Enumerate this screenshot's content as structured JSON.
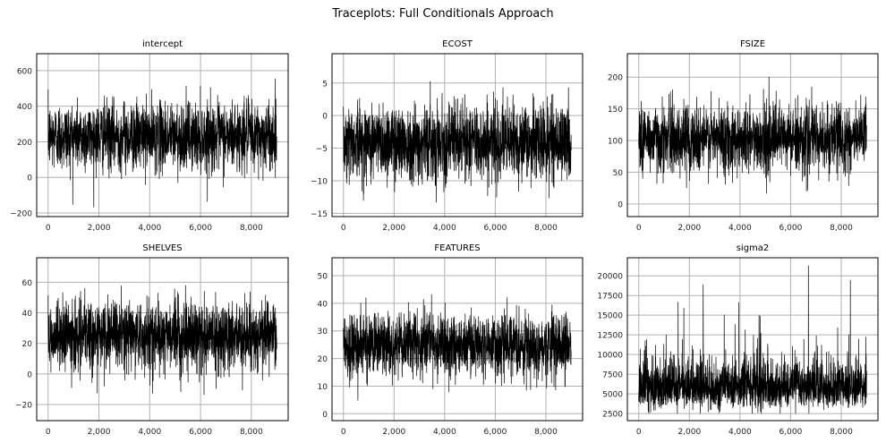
{
  "figure": {
    "suptitle": "Traceplots: Full Conditionals Approach",
    "line_color": "#000000",
    "grid_color": "#b0b0b0",
    "n_iterations": 9000
  },
  "chart_data": [
    {
      "type": "line",
      "title": "intercept",
      "xlabel": "",
      "ylabel": "",
      "grid": true,
      "x_ticks": [
        0,
        2000,
        4000,
        6000,
        8000
      ],
      "x_tick_labels": [
        "0",
        "2,000",
        "4,000",
        "6,000",
        "8,000"
      ],
      "xlim": [
        -450,
        9450
      ],
      "y_ticks": [
        -200,
        0,
        200,
        400,
        600
      ],
      "y_tick_labels": [
        "−200",
        "0",
        "200",
        "400",
        "600"
      ],
      "ylim": [
        -220,
        695
      ],
      "series": [
        {
          "name": "intercept",
          "mean": 230,
          "sd": 95,
          "min": -180,
          "max": 655,
          "n": 9000
        }
      ]
    },
    {
      "type": "line",
      "title": "ECOST",
      "xlabel": "",
      "ylabel": "",
      "grid": true,
      "x_ticks": [
        0,
        2000,
        4000,
        6000,
        8000
      ],
      "x_tick_labels": [
        "0",
        "2,000",
        "4,000",
        "6,000",
        "8,000"
      ],
      "xlim": [
        -450,
        9450
      ],
      "y_ticks": [
        -15,
        -10,
        -5,
        0,
        5
      ],
      "y_tick_labels": [
        "−15",
        "−10",
        "−5",
        "0",
        "5"
      ],
      "ylim": [
        -15.5,
        9.5
      ],
      "series": [
        {
          "name": "ECOST",
          "mean": -4,
          "sd": 2.9,
          "min": -14.3,
          "max": 8.2,
          "n": 9000
        }
      ]
    },
    {
      "type": "line",
      "title": "FSIZE",
      "xlabel": "",
      "ylabel": "",
      "grid": true,
      "x_ticks": [
        0,
        2000,
        4000,
        6000,
        8000
      ],
      "x_tick_labels": [
        "0",
        "2,000",
        "4,000",
        "6,000",
        "8,000"
      ],
      "xlim": [
        -450,
        9450
      ],
      "y_ticks": [
        0,
        50,
        100,
        150,
        200
      ],
      "y_tick_labels": [
        "0",
        "50",
        "100",
        "150",
        "200"
      ],
      "ylim": [
        -20,
        237
      ],
      "series": [
        {
          "name": "FSIZE",
          "mean": 103,
          "sd": 27,
          "min": -7,
          "max": 227,
          "n": 9000
        }
      ]
    },
    {
      "type": "line",
      "title": "SHELVES",
      "xlabel": "",
      "ylabel": "",
      "grid": true,
      "x_ticks": [
        0,
        2000,
        4000,
        6000,
        8000
      ],
      "x_tick_labels": [
        "0",
        "2,000",
        "4,000",
        "6,000",
        "8,000"
      ],
      "xlim": [
        -450,
        9450
      ],
      "y_ticks": [
        -20,
        0,
        20,
        40,
        60
      ],
      "y_tick_labels": [
        "−20",
        "0",
        "20",
        "40",
        "60"
      ],
      "ylim": [
        -30.5,
        76
      ],
      "series": [
        {
          "name": "SHELVES",
          "mean": 25,
          "sd": 11,
          "min": -26,
          "max": 72,
          "n": 9000
        }
      ]
    },
    {
      "type": "line",
      "title": "FEATURES",
      "xlabel": "",
      "ylabel": "",
      "grid": true,
      "x_ticks": [
        0,
        2000,
        4000,
        6000,
        8000
      ],
      "x_tick_labels": [
        "0",
        "2,000",
        "4,000",
        "6,000",
        "8,000"
      ],
      "xlim": [
        -450,
        9450
      ],
      "y_ticks": [
        0,
        10,
        20,
        30,
        40,
        50
      ],
      "y_tick_labels": [
        "0",
        "10",
        "20",
        "30",
        "40",
        "50"
      ],
      "ylim": [
        -2.5,
        56.5
      ],
      "series": [
        {
          "name": "FEATURES",
          "mean": 25,
          "sd": 5.6,
          "min": 0.5,
          "max": 54,
          "n": 9000
        }
      ]
    },
    {
      "type": "line",
      "title": "sigma2",
      "xlabel": "",
      "ylabel": "",
      "grid": true,
      "x_ticks": [
        0,
        2000,
        4000,
        6000,
        8000
      ],
      "x_tick_labels": [
        "0",
        "2,000",
        "4,000",
        "6,000",
        "8,000"
      ],
      "xlim": [
        -450,
        9450
      ],
      "y_ticks": [
        2500,
        5000,
        7500,
        10000,
        12500,
        15000,
        17500,
        20000
      ],
      "y_tick_labels": [
        "2500",
        "5000",
        "7500",
        "10000",
        "12500",
        "15000",
        "17500",
        "20000"
      ],
      "ylim": [
        1600,
        22300
      ],
      "series": [
        {
          "name": "sigma2",
          "median": 5800,
          "skew": "right",
          "min": 2500,
          "max": 21300,
          "n": 9000
        }
      ]
    }
  ]
}
